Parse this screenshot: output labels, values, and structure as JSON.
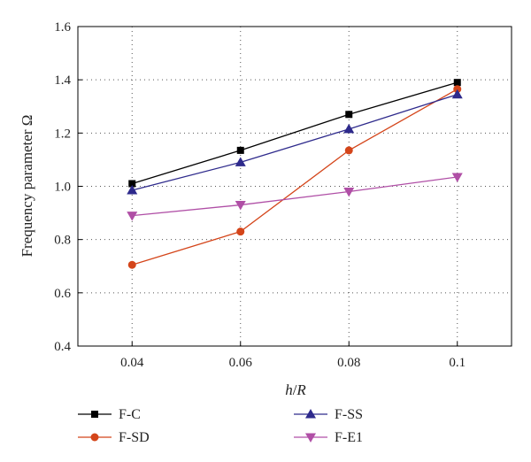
{
  "chart_data": {
    "type": "line",
    "x": [
      0.04,
      0.06,
      0.08,
      0.1
    ],
    "x_tick_labels": [
      "0.04",
      "0.06",
      "0.08",
      "0.1"
    ],
    "y_tick_labels": [
      "0.4",
      "0.6",
      "0.8",
      "1.0",
      "1.2",
      "1.4",
      "1.6"
    ],
    "y_ticks": [
      0.4,
      0.6,
      0.8,
      1.0,
      1.2,
      1.4,
      1.6
    ],
    "xlim": [
      0.03,
      0.11
    ],
    "ylim": [
      0.4,
      1.6
    ],
    "xlabel_main": "h",
    "xlabel_sep": "/",
    "xlabel_den": "R",
    "ylabel": "Frequency parameter Ω",
    "grid": "dotted",
    "legend_position": "bottom",
    "series": [
      {
        "name": "F-C",
        "values": [
          1.01,
          1.135,
          1.27,
          1.39
        ],
        "color": "#000000",
        "marker": "square"
      },
      {
        "name": "F-SD",
        "values": [
          0.705,
          0.83,
          1.135,
          1.365
        ],
        "color": "#d4451a",
        "marker": "circle"
      },
      {
        "name": "F-SS",
        "values": [
          0.985,
          1.09,
          1.215,
          1.345
        ],
        "color": "#2e2a8c",
        "marker": "triangle-up"
      },
      {
        "name": "F-E1",
        "values": [
          0.89,
          0.93,
          0.98,
          1.035
        ],
        "color": "#b04fa6",
        "marker": "triangle-down"
      }
    ]
  }
}
